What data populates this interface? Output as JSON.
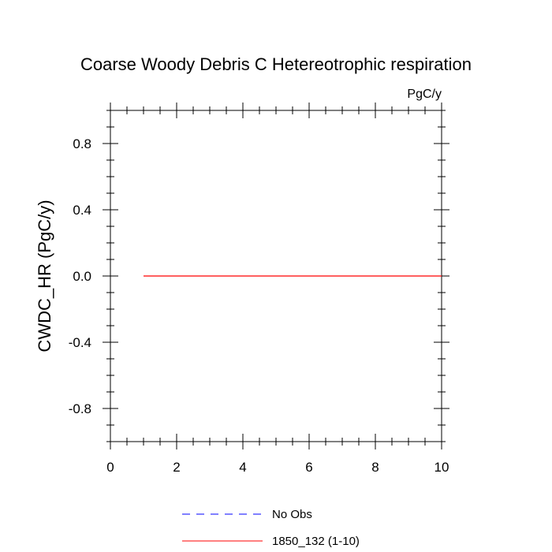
{
  "chart_data": {
    "type": "line",
    "title": "Coarse Woody Debris C Hetereotrophic respiration",
    "units": "PgC/y",
    "ylabel": "CWDC_HR  (PgC/y)",
    "xlabel": "",
    "xlim": [
      0,
      10
    ],
    "ylim": [
      -1,
      1
    ],
    "xticks": [
      0,
      2,
      4,
      6,
      8,
      10
    ],
    "xtick_labels": [
      "0",
      "2",
      "4",
      "6",
      "8",
      "10"
    ],
    "yticks": [
      -0.8,
      -0.4,
      0.0,
      0.4,
      0.8
    ],
    "ytick_labels": [
      "-0.8",
      "-0.4",
      "0.0",
      "0.4",
      "0.8"
    ],
    "grid": false,
    "legend_position": "bottom",
    "series": [
      {
        "name": "No Obs",
        "color": "#0000ff",
        "style": "dashed",
        "x": [],
        "y": []
      },
      {
        "name": "1850_132 (1-10)",
        "color": "#ff0000",
        "style": "solid",
        "x": [
          1,
          2,
          3,
          4,
          5,
          6,
          7,
          8,
          9,
          10
        ],
        "y": [
          0,
          0,
          0,
          0,
          0,
          0,
          0,
          0,
          0,
          0
        ]
      }
    ]
  }
}
